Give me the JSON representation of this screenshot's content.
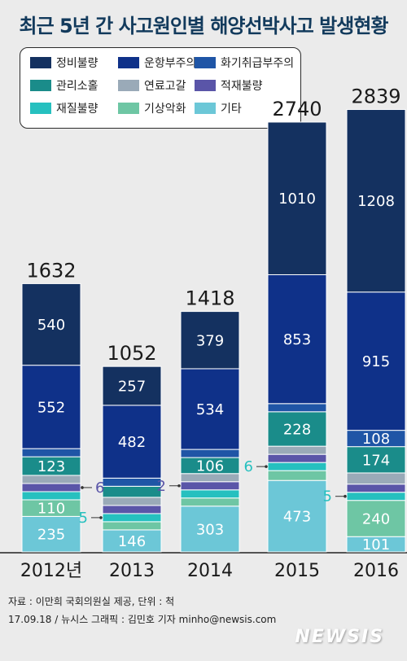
{
  "title": "최근 5년 간 사고원인별 해양선박사고 발생현황",
  "source_line1": "자료 : 이만희 국회의원실 제공, 단위 : 척",
  "source_line2": "17.09.18 / 뉴시스 그래픽 : 김민호 기자 minho@newsis.com",
  "brand": "NEWSIS",
  "chart_data": {
    "type": "bar",
    "stacked": true,
    "title": "최근 5년 간 사고원인별 해양선박사고 발생현황",
    "unit": "척",
    "legend_position": "top-left",
    "categories": [
      "2012년",
      "2013",
      "2014",
      "2015",
      "2016"
    ],
    "totals": [
      1632,
      1052,
      1418,
      2740,
      2839
    ],
    "series": [
      {
        "name": "기타",
        "color": "#6cc7d7",
        "values": [
          235,
          146,
          303,
          473,
          101
        ]
      },
      {
        "name": "기상악화",
        "color": "#6ec6a4",
        "values": [
          110,
          39,
          41,
          65,
          240
        ]
      },
      {
        "name": "재질불량",
        "color": "#26c0bf",
        "values": [
          12,
          5,
          4,
          6,
          5
        ]
      },
      {
        "name": "적재불량",
        "color": "#5a55a8",
        "values": [
          6,
          6,
          2,
          12,
          14
        ]
      },
      {
        "name": "연료고갈",
        "color": "#9aaab8",
        "values": [
          26,
          20,
          19,
          47,
          74
        ]
      },
      {
        "name": "관리소홀",
        "color": "#1a8c8a",
        "values": [
          123,
          73,
          106,
          228,
          174
        ]
      },
      {
        "name": "화기취급부주의",
        "color": "#1f55a6",
        "values": [
          28,
          24,
          30,
          46,
          108
        ]
      },
      {
        "name": "운항부주의",
        "color": "#0f3189",
        "values": [
          552,
          482,
          534,
          853,
          915
        ]
      },
      {
        "name": "정비불량",
        "color": "#143160",
        "values": [
          540,
          257,
          379,
          1010,
          1208
        ]
      }
    ],
    "callouts": [
      {
        "category": "2012년",
        "series": "적재불량",
        "text": "6"
      },
      {
        "category": "2013",
        "series": "재질불량",
        "text": "5"
      },
      {
        "category": "2014",
        "series": "적재불량",
        "text": "2"
      },
      {
        "category": "2015",
        "series": "재질불량",
        "text": "6"
      },
      {
        "category": "2016",
        "series": "재질불량",
        "text": "5"
      }
    ],
    "legend_order": [
      "정비불량",
      "운항부주의",
      "화기취급부주의",
      "관리소홀",
      "연료고갈",
      "적재불량",
      "재질불량",
      "기상악화",
      "기타"
    ]
  }
}
